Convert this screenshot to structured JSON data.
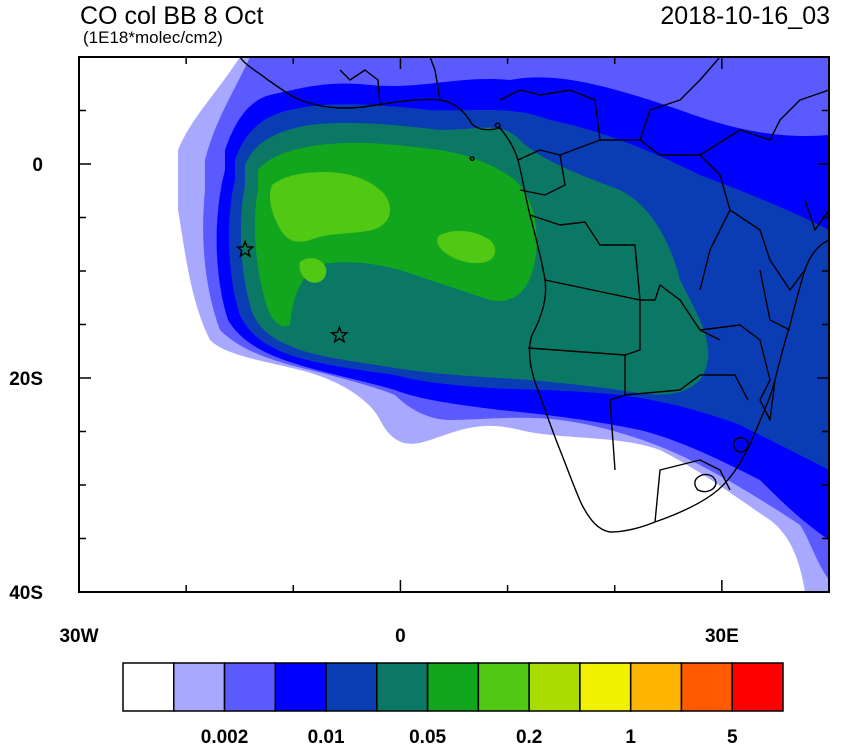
{
  "title": "CO col BB 8 Oct",
  "units": "(1E18*molec/cm2)",
  "datetime": "2018-10-16_03",
  "axes": {
    "x_ticks": [
      {
        "value": -30,
        "label": "30W"
      },
      {
        "value": 0,
        "label": "0"
      },
      {
        "value": 30,
        "label": "30E"
      }
    ],
    "y_ticks": [
      {
        "value": 0,
        "label": "0"
      },
      {
        "value": -20,
        "label": "20S"
      },
      {
        "value": -40,
        "label": "40S"
      }
    ],
    "lon_range": [
      -30,
      40
    ],
    "lat_range": [
      -40,
      10
    ]
  },
  "colorbar": {
    "colors": [
      "#ffffff",
      "#a8a8ff",
      "#5a5aff",
      "#0000ff",
      "#0a3cb4",
      "#0a7864",
      "#12a51e",
      "#50c814",
      "#aadc00",
      "#f0f000",
      "#ffb400",
      "#ff5a00",
      "#ff0000"
    ],
    "labels": [
      {
        "after_index": 1,
        "text": "0.002"
      },
      {
        "after_index": 3,
        "text": "0.01"
      },
      {
        "after_index": 5,
        "text": "0.05"
      },
      {
        "after_index": 7,
        "text": "0.2"
      },
      {
        "after_index": 9,
        "text": "1"
      },
      {
        "after_index": 11,
        "text": "5"
      }
    ]
  },
  "markers": [
    {
      "lon": -14.5,
      "lat": -8,
      "name": "star-marker"
    },
    {
      "lon": -5.7,
      "lat": -16,
      "name": "star-marker"
    }
  ],
  "colors": {
    "land_outline": "#000000",
    "ocean": "#ffffff"
  }
}
